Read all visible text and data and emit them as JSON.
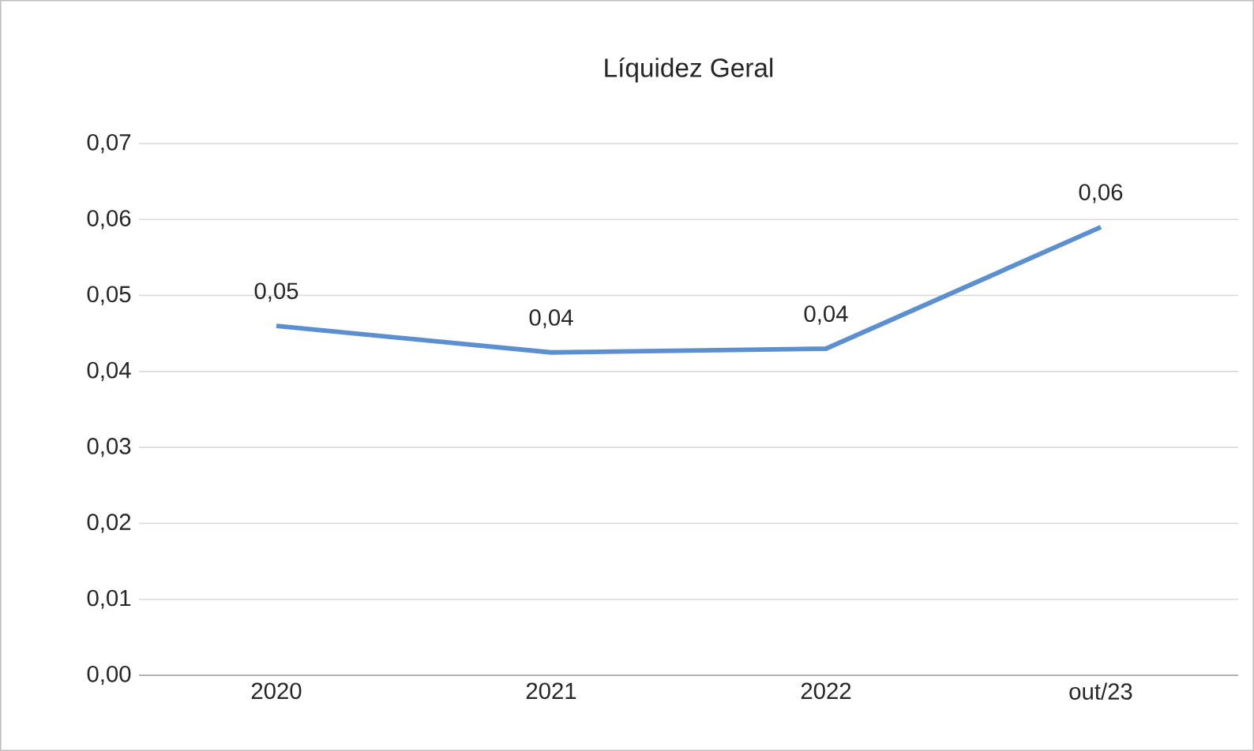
{
  "chart_data": {
    "type": "line",
    "title": "Líquidez Geral",
    "categories": [
      "2020",
      "2021",
      "2022",
      "out/23"
    ],
    "series": [
      {
        "color": "#5b8fd0",
        "values": [
          0.046,
          0.0425,
          0.043,
          0.059
        ],
        "value_labels": [
          "0,05",
          "0,04",
          "0,04",
          "0,06"
        ]
      }
    ],
    "ylim": [
      0,
      0.07
    ],
    "yticks": [
      {
        "value": 0,
        "label": "0,00"
      },
      {
        "value": 0.01,
        "label": "0,01"
      },
      {
        "value": 0.02,
        "label": "0,02"
      },
      {
        "value": 0.03,
        "label": "0,03"
      },
      {
        "value": 0.04,
        "label": "0,04"
      },
      {
        "value": 0.05,
        "label": "0,05"
      },
      {
        "value": 0.06,
        "label": "0,06"
      },
      {
        "value": 0.07,
        "label": "0,07"
      }
    ],
    "grid": "y",
    "marker": "none",
    "line_style": "solid"
  }
}
